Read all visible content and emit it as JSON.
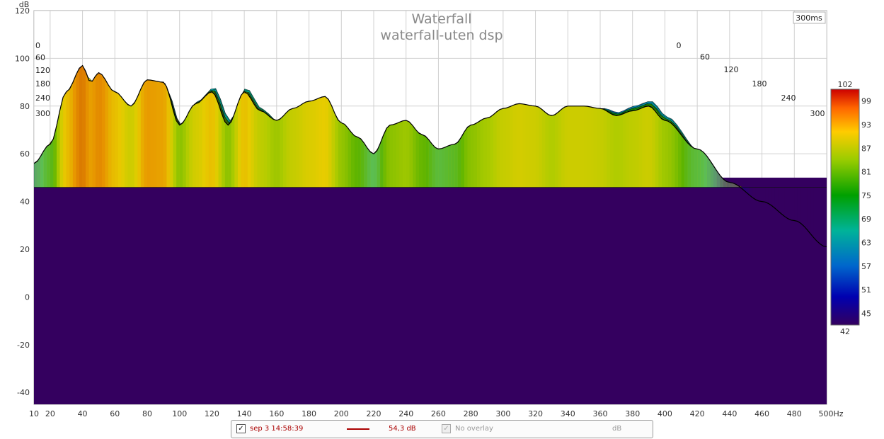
{
  "chart_data": {
    "type": "waterfall",
    "title": "Waterfall",
    "subtitle": "waterfall-uten dsp",
    "ylabel": "dB",
    "xunit": "Hz",
    "ylim": [
      -45,
      120
    ],
    "xlim": [
      10,
      500
    ],
    "y_ticks": [
      "120",
      "100",
      "80",
      "60",
      "40",
      "20",
      "0",
      "-20",
      "-40"
    ],
    "x_ticks": [
      "10",
      "20",
      "40",
      "60",
      "80",
      "100",
      "120",
      "140",
      "160",
      "180",
      "200",
      "220",
      "240",
      "260",
      "280",
      "300",
      "320",
      "340",
      "360",
      "380",
      "400",
      "420",
      "440",
      "460",
      "480",
      "500Hz"
    ],
    "time_axis_label": "300ms",
    "time_ticks_left": [
      "0",
      "60",
      "120",
      "180",
      "240",
      "300"
    ],
    "time_ticks_right": [
      "0",
      "60",
      "120",
      "180",
      "240",
      "300"
    ],
    "colorbar_ticks": [
      "102",
      "99",
      "93",
      "87",
      "81",
      "75",
      "69",
      "63",
      "57",
      "51",
      "45",
      "42"
    ],
    "colorbar_range": [
      42,
      102
    ],
    "front_slice": {
      "x_hz": [
        10,
        20,
        30,
        40,
        45,
        50,
        60,
        70,
        80,
        90,
        100,
        110,
        120,
        130,
        140,
        150,
        160,
        170,
        180,
        190,
        200,
        210,
        220,
        230,
        240,
        250,
        260,
        270,
        280,
        290,
        300,
        310,
        320,
        330,
        340,
        350,
        360,
        370,
        380,
        390,
        400,
        420,
        440,
        460,
        480,
        500
      ],
      "y_db": [
        56,
        64,
        86,
        97,
        90,
        94,
        86,
        80,
        91,
        90,
        72,
        81,
        86,
        72,
        86,
        78,
        74,
        79,
        82,
        84,
        73,
        67,
        60,
        72,
        74,
        68,
        62,
        64,
        72,
        75,
        79,
        81,
        80,
        76,
        80,
        80,
        79,
        76,
        78,
        80,
        74,
        62,
        48,
        40,
        32,
        21
      ]
    }
  },
  "legend": {
    "checkbox_mark": "✓",
    "series_label": "sep 3 14:58:39",
    "series_value": "54,3 dB",
    "series_color": "#aa0000",
    "overlay_label": "No overlay",
    "overlay_unit": "dB"
  },
  "colors": {
    "background_fill": "#34005f",
    "plot_bg": "#ffffff",
    "grid": "#d0d0d0"
  }
}
